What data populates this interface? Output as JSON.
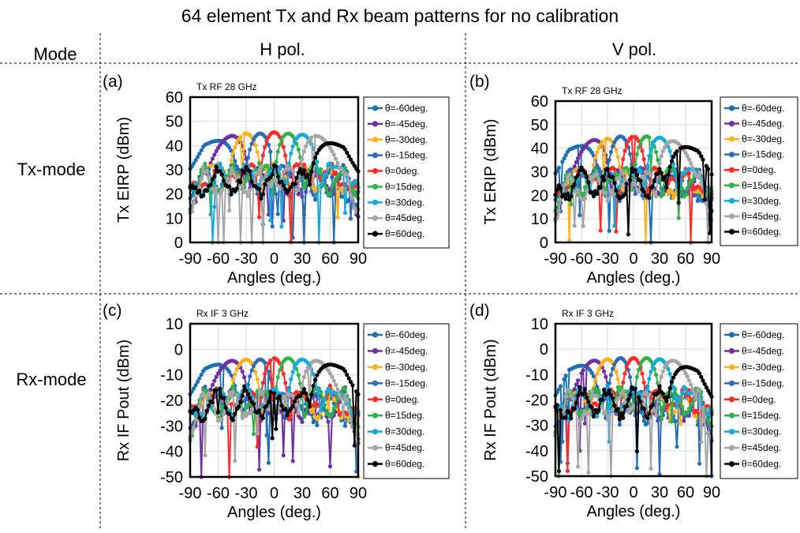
{
  "title": "64 element Tx and Rx beam patterns for no calibration",
  "headers": {
    "mode": "Mode",
    "h_pol": "H pol.",
    "v_pol": "V pol."
  },
  "row_labels": {
    "tx": "Tx-mode",
    "rx": "Rx-mode"
  },
  "series_legend": [
    "θ=-60deg.",
    "θ=-45deg.",
    "θ=-30deg.",
    "θ=-15deg.",
    "θ=0deg.",
    "θ=15deg.",
    "θ=30deg.",
    "θ=45deg.",
    "θ=60deg."
  ],
  "colors": [
    "#1f6fb4",
    "#7030a0",
    "#ffb21f",
    "#2e6bb8",
    "#ff2a2a",
    "#2fb34a",
    "#17a9de",
    "#a6a6a6",
    "#000000"
  ],
  "chart_data": [
    {
      "id": "a",
      "type": "scatter",
      "panel_label": "(a)",
      "inset_title": "Tx RF 28 GHz",
      "xlabel": "Angles (deg.)",
      "ylabel": "Tx EIRP  (dBm)",
      "xlim": [
        -90,
        90
      ],
      "ylim": [
        0,
        60
      ],
      "xticks": [
        -90,
        -60,
        -30,
        0,
        30,
        60,
        90
      ],
      "yticks": [
        0,
        10,
        20,
        30,
        40,
        50,
        60
      ],
      "xtick_labels": [
        "-90",
        "-60",
        "-30",
        "0",
        "30",
        "60",
        "90"
      ],
      "grid": true,
      "legend": "right",
      "series": [
        {
          "name": "θ=-60deg.",
          "steer": -60,
          "peak": 42,
          "sidelobe": 27
        },
        {
          "name": "θ=-45deg.",
          "steer": -45,
          "peak": 44,
          "sidelobe": 28
        },
        {
          "name": "θ=-30deg.",
          "steer": -30,
          "peak": 45,
          "sidelobe": 29
        },
        {
          "name": "θ=-15deg.",
          "steer": -15,
          "peak": 45,
          "sidelobe": 29
        },
        {
          "name": "θ=0deg.",
          "steer": 0,
          "peak": 45.5,
          "sidelobe": 29
        },
        {
          "name": "θ=15deg.",
          "steer": 15,
          "peak": 45,
          "sidelobe": 29
        },
        {
          "name": "θ=30deg.",
          "steer": 30,
          "peak": 44.5,
          "sidelobe": 29
        },
        {
          "name": "θ=45deg.",
          "steer": 45,
          "peak": 44,
          "sidelobe": 28
        },
        {
          "name": "θ=60deg.",
          "steer": 60,
          "peak": 41,
          "sidelobe": 28
        }
      ]
    },
    {
      "id": "b",
      "type": "scatter",
      "panel_label": "(b)",
      "inset_title": "Tx RF 28 GHz",
      "xlabel": "Angles (deg.)",
      "ylabel": "Tx ERIP (dBm)",
      "xlim": [
        -90,
        90
      ],
      "ylim": [
        0,
        60
      ],
      "xticks": [
        -90,
        -60,
        -30,
        0,
        30,
        60,
        90
      ],
      "yticks": [
        0,
        10,
        20,
        30,
        40,
        50,
        60
      ],
      "xtick_labels": [
        "-90",
        "-60",
        "-30",
        "0",
        "30",
        "60",
        "90"
      ],
      "grid": true,
      "legend": "right",
      "series": [
        {
          "name": "θ=-60deg.",
          "steer": -60,
          "peak": 41,
          "sidelobe": 27
        },
        {
          "name": "θ=-45deg.",
          "steer": -45,
          "peak": 43.5,
          "sidelobe": 28
        },
        {
          "name": "θ=-30deg.",
          "steer": -30,
          "peak": 44,
          "sidelobe": 28
        },
        {
          "name": "θ=-15deg.",
          "steer": -15,
          "peak": 45,
          "sidelobe": 28
        },
        {
          "name": "θ=0deg.",
          "steer": 0,
          "peak": 45,
          "sidelobe": 28
        },
        {
          "name": "θ=15deg.",
          "steer": 15,
          "peak": 45,
          "sidelobe": 28
        },
        {
          "name": "θ=30deg.",
          "steer": 30,
          "peak": 44.5,
          "sidelobe": 28
        },
        {
          "name": "θ=45deg.",
          "steer": 45,
          "peak": 43,
          "sidelobe": 27
        },
        {
          "name": "θ=60deg.",
          "steer": 60,
          "peak": 40.5,
          "sidelobe": 28
        }
      ]
    },
    {
      "id": "c",
      "type": "scatter",
      "panel_label": "(c)",
      "inset_title": "Rx IF 3 GHz",
      "xlabel": "Angles (deg.)",
      "ylabel": "Rx IF Pout  (dBm)",
      "xlim": [
        -90,
        90
      ],
      "ylim": [
        -50,
        10
      ],
      "xticks": [
        -90,
        -60,
        -30,
        0,
        30,
        60,
        90
      ],
      "yticks": [
        -50,
        -40,
        -30,
        -20,
        -10,
        0,
        10
      ],
      "xtick_labels": [
        "-90",
        "-60",
        "-30",
        "0",
        "30",
        "60",
        "90"
      ],
      "grid": true,
      "legend": "right",
      "series": [
        {
          "name": "θ=-60deg.",
          "steer": -60,
          "peak": -6,
          "sidelobe": -20
        },
        {
          "name": "θ=-45deg.",
          "steer": -45,
          "peak": -4.5,
          "sidelobe": -19
        },
        {
          "name": "θ=-30deg.",
          "steer": -30,
          "peak": -4,
          "sidelobe": -18
        },
        {
          "name": "θ=-15deg.",
          "steer": -15,
          "peak": -4,
          "sidelobe": -18
        },
        {
          "name": "θ=0deg.",
          "steer": 0,
          "peak": -3.5,
          "sidelobe": -18
        },
        {
          "name": "θ=15deg.",
          "steer": 15,
          "peak": -3.5,
          "sidelobe": -18
        },
        {
          "name": "θ=30deg.",
          "steer": 30,
          "peak": -4,
          "sidelobe": -18
        },
        {
          "name": "θ=45deg.",
          "steer": 45,
          "peak": -4.5,
          "sidelobe": -19
        },
        {
          "name": "θ=60deg.",
          "steer": 60,
          "peak": -6,
          "sidelobe": -18
        }
      ]
    },
    {
      "id": "d",
      "type": "scatter",
      "panel_label": "(d)",
      "inset_title": "Rx IF 3 GHz",
      "xlabel": "Angles (deg.)",
      "ylabel": "Rx IF Pout (dBm)",
      "xlim": [
        -90,
        90
      ],
      "ylim": [
        -50,
        10
      ],
      "xticks": [
        -90,
        -60,
        -30,
        0,
        30,
        60,
        90
      ],
      "yticks": [
        -50,
        -40,
        -30,
        -20,
        -10,
        0,
        10
      ],
      "xtick_labels": [
        "-90",
        "-60",
        "-30",
        "0",
        "30",
        "60",
        "90"
      ],
      "grid": true,
      "legend": "right",
      "series": [
        {
          "name": "θ=-60deg.",
          "steer": -60,
          "peak": -6.5,
          "sidelobe": -20
        },
        {
          "name": "θ=-45deg.",
          "steer": -45,
          "peak": -4.5,
          "sidelobe": -19
        },
        {
          "name": "θ=-30deg.",
          "steer": -30,
          "peak": -4,
          "sidelobe": -19
        },
        {
          "name": "θ=-15deg.",
          "steer": -15,
          "peak": -3.5,
          "sidelobe": -18
        },
        {
          "name": "θ=0deg.",
          "steer": 0,
          "peak": -3.5,
          "sidelobe": -18
        },
        {
          "name": "θ=15deg.",
          "steer": 15,
          "peak": -3.5,
          "sidelobe": -18
        },
        {
          "name": "θ=30deg.",
          "steer": 30,
          "peak": -4,
          "sidelobe": -18
        },
        {
          "name": "θ=45deg.",
          "steer": 45,
          "peak": -4.5,
          "sidelobe": -19
        },
        {
          "name": "θ=60deg.",
          "steer": 60,
          "peak": -7,
          "sidelobe": -18
        }
      ]
    }
  ]
}
